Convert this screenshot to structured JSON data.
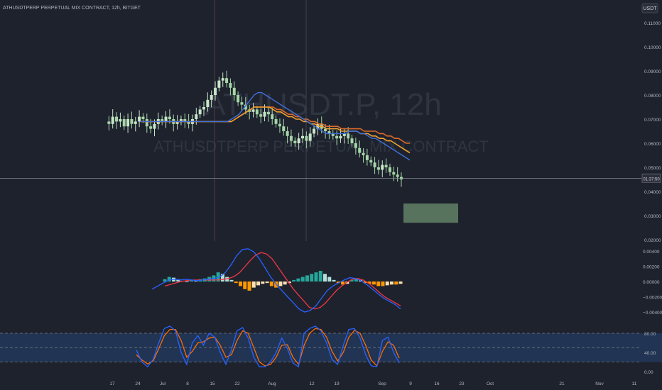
{
  "header": {
    "symbol_line": "ATHUSDTPERP PERPETUAL MIX CONTRACT, 12h, BITGET",
    "currency_badge": "USDT"
  },
  "watermark": {
    "big": "ATHUSDT.P, 12h",
    "small": "ATHUSDTPERP PERPETUAL MIX CONTRACT"
  },
  "colors": {
    "background": "#1e222d",
    "up_candle": "#c8e6c9",
    "down_candle": "#a5d6a7",
    "ma_fast": "#3f6fd8",
    "ma_slow": "#f0a030",
    "ma_mid": "#d96a2a",
    "macd_line": "#2962ff",
    "signal_line": "#f23645",
    "hist_pos_strong": "#26a69a",
    "hist_pos_weak": "#b2dfdb",
    "hist_neg_strong": "#ff9800",
    "hist_neg_weak": "#ffe0b2",
    "stoch_k": "#2962ff",
    "stoch_d": "#ff6d00",
    "target_box": "#5d7b63"
  },
  "chart_data": [
    {
      "type": "candlestick",
      "name": "price",
      "y_ticks": [
        "0.11000",
        "0.10000",
        "0.09000",
        "0.08000",
        "0.07000",
        "0.06000",
        "0.05000",
        "0.04000",
        "0.03000",
        "0.02000"
      ],
      "ylim": [
        0.02,
        0.11
      ],
      "current_price_label": "01:37:50",
      "last_price": 0.0455,
      "price_path": [
        0.069,
        0.068,
        0.071,
        0.069,
        0.07,
        0.067,
        0.07,
        0.068,
        0.069,
        0.071,
        0.07,
        0.067,
        0.066,
        0.068,
        0.07,
        0.069,
        0.071,
        0.07,
        0.068,
        0.069,
        0.07,
        0.069,
        0.068,
        0.07,
        0.072,
        0.074,
        0.075,
        0.078,
        0.08,
        0.083,
        0.086,
        0.087,
        0.085,
        0.083,
        0.08,
        0.077,
        0.076,
        0.074,
        0.073,
        0.074,
        0.072,
        0.071,
        0.073,
        0.072,
        0.07,
        0.068,
        0.067,
        0.065,
        0.063,
        0.061,
        0.06,
        0.062,
        0.063,
        0.061,
        0.064,
        0.066,
        0.068,
        0.066,
        0.065,
        0.064,
        0.063,
        0.062,
        0.063,
        0.064,
        0.062,
        0.06,
        0.058,
        0.056,
        0.055,
        0.053,
        0.052,
        0.05,
        0.049,
        0.051,
        0.05,
        0.048,
        0.047,
        0.046,
        0.045
      ],
      "ma_fast_path": [
        0.069,
        0.069,
        0.069,
        0.069,
        0.069,
        0.069,
        0.069,
        0.069,
        0.069,
        0.069,
        0.069,
        0.069,
        0.069,
        0.069,
        0.069,
        0.069,
        0.069,
        0.069,
        0.069,
        0.069,
        0.069,
        0.069,
        0.069,
        0.069,
        0.07,
        0.071,
        0.072,
        0.074,
        0.076,
        0.078,
        0.08,
        0.081,
        0.081,
        0.08,
        0.079,
        0.078,
        0.077,
        0.076,
        0.075,
        0.074,
        0.073,
        0.072,
        0.071,
        0.07,
        0.069,
        0.068,
        0.067,
        0.066,
        0.065,
        0.064,
        0.064,
        0.064,
        0.064,
        0.064,
        0.064,
        0.065,
        0.065,
        0.065,
        0.064,
        0.064,
        0.063,
        0.062,
        0.062,
        0.061,
        0.06,
        0.059,
        0.058,
        0.057,
        0.056,
        0.055,
        0.054,
        0.053
      ],
      "ma_slow_path": [
        0.069,
        0.069,
        0.069,
        0.069,
        0.069,
        0.069,
        0.069,
        0.069,
        0.069,
        0.069,
        0.069,
        0.069,
        0.069,
        0.069,
        0.069,
        0.069,
        0.069,
        0.069,
        0.069,
        0.069,
        0.069,
        0.069,
        0.069,
        0.069,
        0.069,
        0.07,
        0.071,
        0.072,
        0.073,
        0.074,
        0.075,
        0.075,
        0.075,
        0.075,
        0.075,
        0.074,
        0.073,
        0.073,
        0.072,
        0.071,
        0.071,
        0.07,
        0.07,
        0.069,
        0.069,
        0.068,
        0.068,
        0.067,
        0.067,
        0.066,
        0.066,
        0.066,
        0.066,
        0.065,
        0.065,
        0.065,
        0.065,
        0.065,
        0.064,
        0.064,
        0.064,
        0.063,
        0.063,
        0.062,
        0.062,
        0.061,
        0.061,
        0.06,
        0.059,
        0.058,
        0.057,
        0.056
      ],
      "ma_mid_path": [
        0.069,
        0.069,
        0.069,
        0.069,
        0.069,
        0.069,
        0.069,
        0.069,
        0.069,
        0.069,
        0.069,
        0.069,
        0.069,
        0.069,
        0.069,
        0.069,
        0.069,
        0.069,
        0.069,
        0.069,
        0.069,
        0.069,
        0.069,
        0.069,
        0.069,
        0.07,
        0.071,
        0.072,
        0.073,
        0.074,
        0.075,
        0.075,
        0.075,
        0.075,
        0.075,
        0.075,
        0.074,
        0.074,
        0.073,
        0.072,
        0.072,
        0.071,
        0.071,
        0.07,
        0.07,
        0.069,
        0.069,
        0.068,
        0.068,
        0.067,
        0.067,
        0.067,
        0.067,
        0.066,
        0.066,
        0.066,
        0.066,
        0.066,
        0.066,
        0.065,
        0.065,
        0.065,
        0.065,
        0.064,
        0.064,
        0.063,
        0.063,
        0.062,
        0.062,
        0.061,
        0.06,
        0.06
      ],
      "target_zone": [
        0.027,
        0.035
      ]
    },
    {
      "type": "macd",
      "y_ticks": [
        "0.00400",
        "0.00200",
        "0.00000",
        "−0.00200",
        "−0.00400"
      ],
      "ylim": [
        -0.0055,
        0.0052
      ],
      "macd_path": [
        -0.001,
        -0.0006,
        -0.0002,
        0.0002,
        0.0003,
        0.0002,
        0.0003,
        0.0002,
        0.0001,
        0.0002,
        0.0003,
        0.0004,
        0.0006,
        0.0012,
        0.0022,
        0.0034,
        0.0042,
        0.0043,
        0.0039,
        0.003,
        0.0018,
        0.0006,
        -0.0004,
        -0.0012,
        -0.002,
        -0.0028,
        -0.0036,
        -0.004,
        -0.0038,
        -0.0032,
        -0.0022,
        -0.0012,
        -0.0006,
        -0.0002,
        0.0002,
        0.0005,
        0.0004,
        0.0001,
        -0.0004,
        -0.001,
        -0.0016,
        -0.0022,
        -0.0026,
        -0.003,
        -0.0036
      ],
      "signal_path": [
        -0.0006,
        -0.0004,
        -0.0002,
        0.0,
        0.0001,
        0.0002,
        0.0002,
        0.0002,
        0.0002,
        0.0002,
        0.0002,
        0.0003,
        0.0004,
        0.0007,
        0.0012,
        0.002,
        0.0028,
        0.0035,
        0.0038,
        0.0036,
        0.003,
        0.002,
        0.001,
        0.0,
        -0.001,
        -0.0018,
        -0.0026,
        -0.0034,
        -0.0036,
        -0.0034,
        -0.0028,
        -0.002,
        -0.0012,
        -0.0006,
        -0.0001,
        0.0003,
        0.0004,
        0.0002,
        -0.0002,
        -0.0008,
        -0.0014,
        -0.002,
        -0.0024,
        -0.0028,
        -0.0032
      ],
      "histogram": [
        0.0003,
        0.0006,
        0.0005,
        0.0003,
        0.0001,
        0.0,
        0.0002,
        0.0001,
        0.0003,
        0.0004,
        0.0006,
        0.0008,
        0.0012,
        0.001,
        0.0006,
        0.0002,
        -0.0002,
        -0.0006,
        -0.001,
        -0.0012,
        -0.0008,
        -0.0005,
        -0.0003,
        -0.0002,
        -0.0006,
        -0.0008,
        -0.0006,
        -0.0004,
        -0.0002,
        0.0002,
        0.0004,
        0.0006,
        0.0008,
        0.001,
        0.0012,
        0.0014,
        0.001,
        0.0006,
        0.0002,
        -0.0002,
        -0.0004,
        -0.0003,
        0.0002,
        0.0003,
        0.0002,
        -0.0002,
        -0.0003,
        -0.0004,
        -0.0006,
        -0.0006,
        -0.0005,
        -0.0004,
        -0.0004,
        -0.0003
      ]
    },
    {
      "type": "stochastic",
      "y_ticks": [
        "80.00",
        "40.00",
        "0.00"
      ],
      "ylim": [
        0,
        100
      ],
      "bands": [
        20,
        50,
        80
      ],
      "k_path": [
        45,
        20,
        10,
        25,
        60,
        90,
        95,
        85,
        40,
        15,
        60,
        75,
        55,
        80,
        72,
        40,
        15,
        45,
        85,
        92,
        70,
        30,
        10,
        10,
        20,
        40,
        70,
        48,
        18,
        10,
        80,
        90,
        95,
        85,
        60,
        25,
        15,
        55,
        88,
        90,
        70,
        35,
        12,
        10,
        65,
        72,
        40,
        18
      ],
      "d_path": [
        35,
        24,
        16,
        22,
        48,
        75,
        88,
        88,
        65,
        30,
        42,
        60,
        62,
        70,
        72,
        55,
        30,
        35,
        65,
        85,
        80,
        50,
        20,
        12,
        15,
        30,
        55,
        56,
        30,
        15,
        55,
        80,
        90,
        88,
        72,
        42,
        22,
        40,
        72,
        86,
        80,
        55,
        24,
        12,
        42,
        62,
        55,
        28
      ]
    }
  ],
  "x_axis": {
    "ticks": [
      "17",
      "24",
      "Jul",
      "8",
      "15",
      "22",
      "Aug",
      "12",
      "19",
      "Sep",
      "9",
      "16",
      "23",
      "Oct",
      "21",
      "Nov",
      "11"
    ]
  }
}
